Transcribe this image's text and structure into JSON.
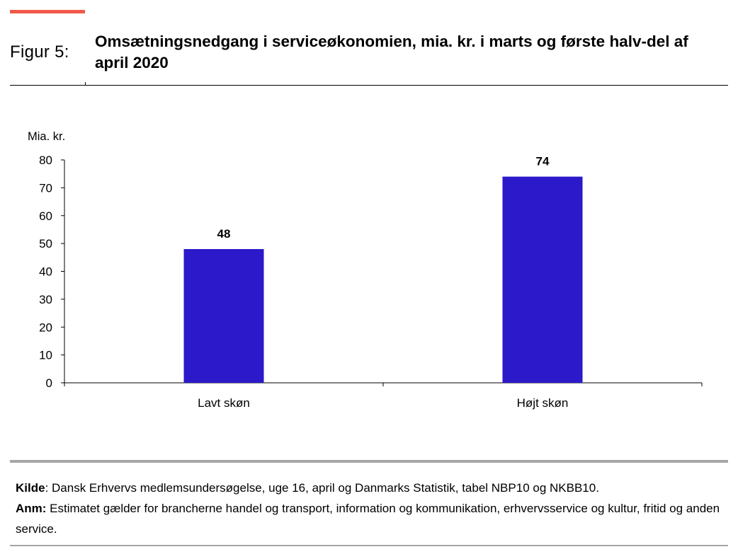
{
  "header": {
    "figure_label": "Figur 5:",
    "title": "Omsætningsnedgang i serviceøkonomien, mia. kr. i marts og første halv-del af april 2020",
    "accent_color": "#f0594a"
  },
  "chart_data": {
    "type": "bar",
    "title": "Omsætningsnedgang i serviceøkonomien, mia. kr. i marts og første halv-del af april 2020",
    "ylabel": "Mia. kr.",
    "xlabel": "",
    "categories": [
      "Lavt skøn",
      "Højt skøn"
    ],
    "values": [
      48,
      74
    ],
    "data_labels": [
      "48",
      "74"
    ],
    "ylim": [
      0,
      80
    ],
    "yticks": [
      0,
      10,
      20,
      30,
      40,
      50,
      60,
      70,
      80
    ],
    "grid": false,
    "legend": "none",
    "bar_color": "#2c19c9"
  },
  "footer": {
    "source_label": "Kilde",
    "source_text": ": Dansk Erhvervs medlemsundersøgelse, uge 16, april og Danmarks Statistik, tabel NBP10 og NKBB10.",
    "note_label": "Anm:",
    "note_text": " Estimatet gælder for brancherne handel og transport, information og kommunikation, erhvervsservice og kultur, fritid og anden service."
  }
}
